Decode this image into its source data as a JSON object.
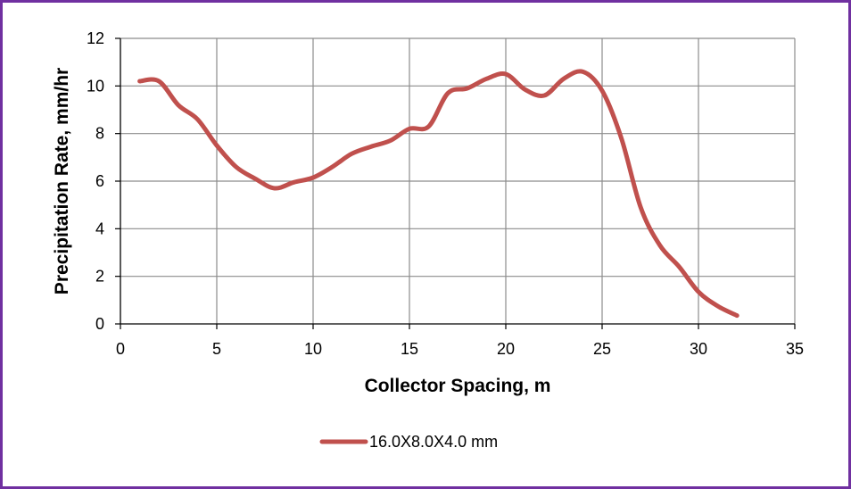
{
  "chart_data": {
    "type": "line",
    "xlabel": "Collector Spacing, m",
    "ylabel": "Precipitation Rate, mm/hr",
    "xlim": [
      0,
      35
    ],
    "ylim": [
      0,
      12
    ],
    "x_ticks": [
      0,
      5,
      10,
      15,
      20,
      25,
      30,
      35
    ],
    "y_ticks": [
      0,
      2,
      4,
      6,
      8,
      10,
      12
    ],
    "grid": true,
    "legend_position": "bottom",
    "series": [
      {
        "name": "16.0X8.0X4.0 mm",
        "color": "#c0504d",
        "x": [
          1,
          2,
          3,
          4,
          5,
          6,
          7,
          8,
          9,
          10,
          11,
          12,
          13,
          14,
          15,
          16,
          17,
          18,
          19,
          20,
          21,
          22,
          23,
          24,
          25,
          26,
          27,
          28,
          29,
          30,
          31,
          32
        ],
        "y": [
          10.2,
          10.2,
          9.2,
          8.6,
          7.5,
          6.6,
          6.1,
          5.7,
          5.95,
          6.15,
          6.6,
          7.15,
          7.45,
          7.7,
          8.2,
          8.3,
          9.7,
          9.9,
          10.3,
          10.5,
          9.85,
          9.6,
          10.3,
          10.6,
          9.8,
          7.8,
          4.9,
          3.3,
          2.4,
          1.35,
          0.75,
          0.35
        ]
      }
    ]
  }
}
